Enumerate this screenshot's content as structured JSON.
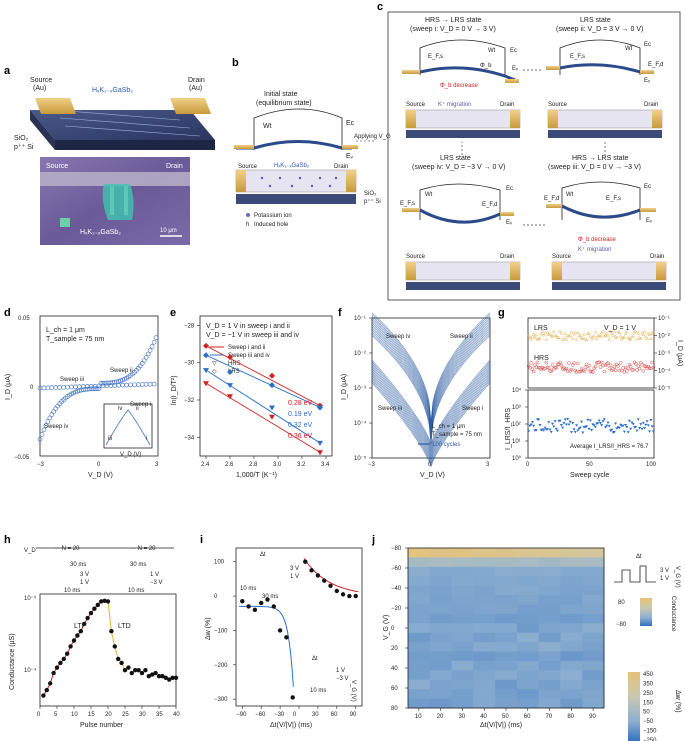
{
  "panels": {
    "a": {
      "label": "a",
      "source": "Source",
      "au_src": "(Au)",
      "drain": "Drain",
      "au_drn": "(Au)",
      "material": "HₓK₁₋ₓGaSb₂",
      "sio2": "SiO₂",
      "si": "p⁺⁺ Si",
      "micro_source": "Source",
      "micro_drain": "Drain",
      "micro_material": "HₓK₁₋ₓGaSb₂",
      "scale": "10 μm"
    },
    "b": {
      "label": "b",
      "title1": "Initial state",
      "title2": "(equilibrium state)",
      "wt": "Wt",
      "ec": "Eᴄ",
      "ev": "Eᵥ",
      "source": "Source",
      "drain": "Drain",
      "material": "HₓK₁₋ₓGaSb₂",
      "sio2": "SiO₂",
      "si": "p⁺⁺ Si",
      "legend1": "Potassium ion",
      "legend2": "Induced hole",
      "legend2_sym": "h",
      "applying": "Applying V_G"
    },
    "c": {
      "label": "c",
      "s1_t1": "HRS → LRS state",
      "s1_t2": "(sweep i: V_D = 0 V → 3 V)",
      "s2_t1": "LRS state",
      "s2_t2": "(sweep ii: V_D = 3 V → 0 V)",
      "s3_t1": "LRS state",
      "s3_t2": "(sweep iv: V_D = −3 V → 0 V)",
      "s4_t1": "HRS → LRS state",
      "s4_t2": "(sweep iii: V_D = 0 V → −3 V)",
      "phib_dec": "Φ_b decrease",
      "kmig": "K⁺ migration",
      "source": "Source",
      "drain": "Drain",
      "ec": "Eᴄ",
      "ev": "Eᵥ",
      "efs": "E_F,s",
      "efd": "E_F,d",
      "wt": "Wt",
      "phib": "Φ_b"
    },
    "d": {
      "label": "d",
      "l1": "L_ch = 1 μm",
      "l2": "T_sample = 75 nm",
      "sweep_i": "Sweep i",
      "sweep_ii": "Sweep ii",
      "sweep_iii": "Sweep iii",
      "sweep_iv": "Sweep iv",
      "xlabel": "V_D (V)",
      "ylabel": "I_D (μA)",
      "yt": [
        "0.05",
        "0",
        "−0.05"
      ],
      "xt": [
        "−3",
        "0",
        "3"
      ],
      "in_x": "V_D (V)",
      "in_y": "I_D (μA)",
      "in_iv": "iv",
      "in_ii": "ii",
      "in_iii": "iii",
      "in_i": "i"
    },
    "e": {
      "label": "e",
      "l1": "V_D = 1 V in sweep i and ii",
      "l2": "V_D = −1 V in sweep iii and iv",
      "leg1": "Sweep i and ii",
      "leg2": "Sweep iii and iv",
      "leg3": "HRS",
      "leg4": "LRS",
      "e1": "0.28 eV",
      "e2": "0.19 eV",
      "e3": "0.32 eV",
      "e4": "0.36 eV",
      "xlabel": "1,000/T (K⁻¹)",
      "ylabel": "ln(I_D/T²)",
      "yt": [
        "−28",
        "−30",
        "−32",
        "−34"
      ],
      "xt": [
        "2.4",
        "2.6",
        "2.8",
        "3.0",
        "3.2",
        "3.4"
      ]
    },
    "f": {
      "label": "f",
      "sweep_iv": "Sweep iv",
      "sweep_ii": "Sweep ii",
      "sweep_iii": "Sweep iii",
      "sweep_i": "Sweep i",
      "l1": "L_ch = 1 μm",
      "l2": "T_sample = 75 nm",
      "l3": "100 cycles",
      "xlabel": "V_D (V)",
      "ylabel": "I_D (μA)",
      "yt": [
        "10⁻¹",
        "10⁻²",
        "10⁻³",
        "10⁻⁴",
        "10⁻⁵"
      ],
      "xt": [
        "−3",
        "0",
        "3"
      ]
    },
    "g": {
      "label": "g",
      "lrs": "LRS",
      "hrs": "HRS",
      "vd": "V_D = 1 V",
      "avg": "Average I_LRS/I_HRS = 76.7",
      "xlabel": "Sweep cycle",
      "ylabel_r": "I_D (μA)",
      "ylabel_l": "I_LRS/I_HRS",
      "yt_r": [
        "10⁻¹",
        "10⁻²",
        "10⁻³",
        "10⁻⁴",
        "10⁻⁵"
      ],
      "yt_l": [
        "10⁴",
        "10³",
        "10²",
        "10¹",
        "10⁰"
      ],
      "xt": [
        "0",
        "50",
        "100"
      ]
    },
    "h": {
      "label": "h",
      "vd": "V_D",
      "n20a": "··· N = 20",
      "n20b": "··· N = 20",
      "p30a": "30 ms",
      "p3v": "3 V",
      "p1v": "1 V",
      "p10a": "10 ms",
      "p30b": "30 ms",
      "p1vb": "1 V",
      "pm3v": "−3 V",
      "p10b": "10 ms",
      "ltp": "LTP",
      "ltd": "LTD",
      "xlabel": "Pulse number",
      "ylabel": "Conductance (μS)",
      "yt": [
        "10⁻³",
        "10⁻⁴"
      ],
      "xt": [
        "0",
        "5",
        "10",
        "15",
        "20",
        "25",
        "30",
        "35",
        "40"
      ]
    },
    "i": {
      "label": "i",
      "dt": "Δt",
      "p10a": "10 ms",
      "p30": "30 ms",
      "vg": "V_G (V)",
      "v3": "3 V",
      "v1": "1 V",
      "pm3": "−3 V",
      "dt2": "Δt",
      "p10b": "10 ms",
      "xlabel": "Δt(V/|V|) (ms)",
      "ylabel": "Δw (%)",
      "yt": [
        "100",
        "0",
        "−100",
        "−200",
        "−300"
      ],
      "xt": [
        "−90",
        "−60",
        "−30",
        "0",
        "30",
        "60",
        "90"
      ]
    },
    "j": {
      "label": "j",
      "xlabel": "Δt(V/|V|) (ms)",
      "ylabel": "V_G (V)",
      "yt": [
        "−80",
        "−60",
        "−40",
        "−20",
        "0",
        "20",
        "40",
        "60",
        "80"
      ],
      "xt": [
        "10",
        "20",
        "30",
        "40",
        "50",
        "60",
        "70",
        "80",
        "90"
      ],
      "dt": "Δt",
      "v3": "3 V",
      "v1": "1 V",
      "vg": "V_G (V)",
      "cond": "Conductance",
      "p80": "80",
      "m80": "−80",
      "cbar_t": [
        "450",
        "350",
        "250",
        "150",
        "50",
        "−50",
        "−150",
        "−250"
      ],
      "cbar_lab": "Δw (%)"
    }
  },
  "chart_data": [
    {
      "type": "line",
      "panel": "e",
      "xlim": [
        2.35,
        3.45
      ],
      "ylim": [
        -35,
        -27.5
      ],
      "series": [
        {
          "name": "Sweep i and ii",
          "marker": "LRS",
          "color": "#d42020",
          "x": [
            2.4,
            2.6,
            2.95,
            3.35
          ],
          "y": [
            -29.1,
            -29.7,
            -30.7,
            -32.3
          ]
        },
        {
          "name": "Sweep iii and iv",
          "marker": "LRS",
          "color": "#2a70c8",
          "x": [
            2.4,
            2.6,
            2.95,
            3.35
          ],
          "y": [
            -29.6,
            -30.5,
            -31.2,
            -32.4
          ]
        },
        {
          "name": "Sweep iii and iv",
          "marker": "HRS",
          "color": "#2a70c8",
          "x": [
            2.4,
            2.6,
            2.95,
            3.35
          ],
          "y": [
            -30.4,
            -31.2,
            -32.4,
            -34.3
          ]
        },
        {
          "name": "Sweep i and ii",
          "marker": "HRS",
          "color": "#d42020",
          "x": [
            2.4,
            2.6,
            2.95,
            3.35
          ],
          "y": [
            -31.1,
            -31.8,
            -32.9,
            -34.8
          ]
        }
      ]
    },
    {
      "type": "scatter",
      "panel": "g",
      "xlim": [
        0,
        100
      ],
      "series": [
        {
          "name": "LRS",
          "level": -2.0
        },
        {
          "name": "HRS",
          "level": -3.8
        },
        {
          "name": "ratio",
          "level": 1.9
        }
      ]
    },
    {
      "type": "scatter",
      "panel": "h",
      "xlim": [
        0,
        40
      ],
      "x": [
        1,
        2,
        3,
        4,
        5,
        6,
        7,
        8,
        9,
        10,
        11,
        12,
        13,
        14,
        15,
        16,
        17,
        18,
        19,
        20,
        21,
        22,
        23,
        24,
        25,
        26,
        27,
        28,
        29,
        30,
        31,
        32,
        33,
        34,
        35,
        36,
        37,
        38,
        39,
        40
      ],
      "y": [
        5.5,
        6.5,
        8,
        11,
        13,
        15,
        17,
        20,
        25,
        30,
        35,
        40,
        50,
        60,
        70,
        80,
        90,
        100,
        102,
        100,
        40,
        25,
        17,
        15,
        12,
        13,
        11,
        12,
        12,
        11,
        12,
        10,
        10.5,
        11,
        10,
        10,
        9.5,
        9,
        9.5,
        9.5
      ],
      "yunit": "1e-5 μS"
    },
    {
      "type": "scatter",
      "panel": "i",
      "xlim": [
        -100,
        100
      ],
      "ylim": [
        -320,
        140
      ],
      "x": [
        -90,
        -80,
        -70,
        -60,
        -50,
        -40,
        -30,
        -20,
        -10,
        10,
        20,
        30,
        40,
        50,
        60,
        70,
        80,
        90
      ],
      "y": [
        -15,
        -30,
        -40,
        -20,
        -10,
        -30,
        -100,
        -120,
        -295,
        100,
        75,
        60,
        45,
        30,
        15,
        5,
        0,
        0
      ]
    },
    {
      "type": "heatmap",
      "panel": "j",
      "xlim": [
        10,
        90
      ],
      "ylim": [
        -80,
        80
      ],
      "clim": [
        -250,
        450
      ]
    }
  ]
}
